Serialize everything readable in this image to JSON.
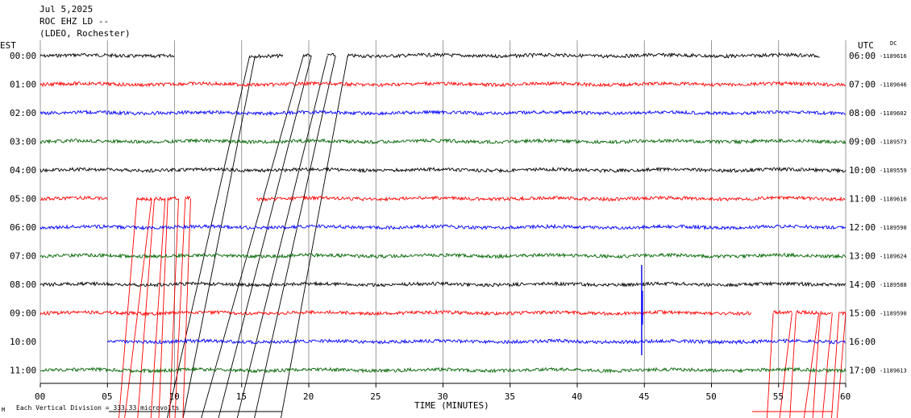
{
  "header": {
    "date": "Jul 5,2025",
    "station": "ROC EHZ LD --",
    "network": "(LDEO, Rochester)"
  },
  "left_tz": "EST",
  "right_tz": "UTC",
  "dc_label": "DC",
  "footer": {
    "scale_note": "Each Vertical Division = 333.33 microvolts",
    "scale_mark": "M"
  },
  "colors": {
    "black": "#000000",
    "red": "#ff0000",
    "blue": "#0000ff",
    "green": "#006400",
    "grid": "#808080"
  },
  "chart_data": {
    "type": "line",
    "xlabel": "TIME (MINUTES)",
    "ylabel": "",
    "xlim": [
      0,
      60
    ],
    "x_ticks": [
      "00",
      "05",
      "10",
      "15",
      "20",
      "25",
      "30",
      "35",
      "40",
      "45",
      "50",
      "55",
      "60"
    ],
    "series": [
      {
        "left": "00:00",
        "right": "06:00",
        "dc": "-1189616",
        "color": "black",
        "segments": [
          [
            0,
            10
          ],
          [
            15.6,
            18.1
          ],
          [
            19.6,
            20.2
          ],
          [
            21.4,
            22
          ],
          [
            22.9,
            24.9
          ],
          [
            24.9,
            58.1
          ]
        ],
        "blank": [
          [
            10,
            15.6
          ]
        ]
      },
      {
        "left": "01:00",
        "right": "07:00",
        "dc": "-1189646",
        "color": "red",
        "segments": [
          [
            0,
            60
          ]
        ]
      },
      {
        "left": "02:00",
        "right": "08:00",
        "dc": "-1189602",
        "color": "blue",
        "segments": [
          [
            0,
            60
          ]
        ]
      },
      {
        "left": "03:00",
        "right": "09:00",
        "dc": "-1189573",
        "color": "green",
        "segments": [
          [
            0,
            60
          ]
        ]
      },
      {
        "left": "04:00",
        "right": "10:00",
        "dc": "-1189559",
        "color": "black",
        "segments": [
          [
            0,
            60
          ]
        ]
      },
      {
        "left": "05:00",
        "right": "11:00",
        "dc": "-1189616",
        "color": "red",
        "segments": [
          [
            0,
            5
          ],
          [
            7.2,
            8.3
          ],
          [
            8.5,
            9.3
          ],
          [
            9.5,
            10.3
          ],
          [
            10.8,
            11.2
          ],
          [
            16.1,
            60
          ]
        ]
      },
      {
        "left": "06:00",
        "right": "12:00",
        "dc": "-1189590",
        "color": "blue",
        "segments": [
          [
            0,
            60
          ]
        ]
      },
      {
        "left": "07:00",
        "right": "13:00",
        "dc": "-1189624",
        "color": "green",
        "segments": [
          [
            0,
            60
          ]
        ]
      },
      {
        "left": "08:00",
        "right": "14:00",
        "dc": "-1189588",
        "color": "black",
        "segments": [
          [
            0,
            60
          ]
        ]
      },
      {
        "left": "09:00",
        "right": "15:00",
        "dc": "-1189590",
        "color": "red",
        "segments": [
          [
            0,
            53
          ],
          [
            54.6,
            56
          ],
          [
            56.3,
            58
          ],
          [
            58.1,
            59
          ],
          [
            59.5,
            60
          ]
        ]
      },
      {
        "left": "10:00",
        "right": "16:00",
        "dc": "",
        "color": "blue",
        "segments": [
          [
            5,
            60
          ]
        ]
      },
      {
        "left": "11:00",
        "right": "17:00",
        "dc": "-1189613",
        "color": "green",
        "segments": [
          [
            0,
            60
          ]
        ]
      }
    ],
    "events": [
      {
        "row": 8,
        "minute": 44.8,
        "amplitude": "spike"
      }
    ]
  }
}
